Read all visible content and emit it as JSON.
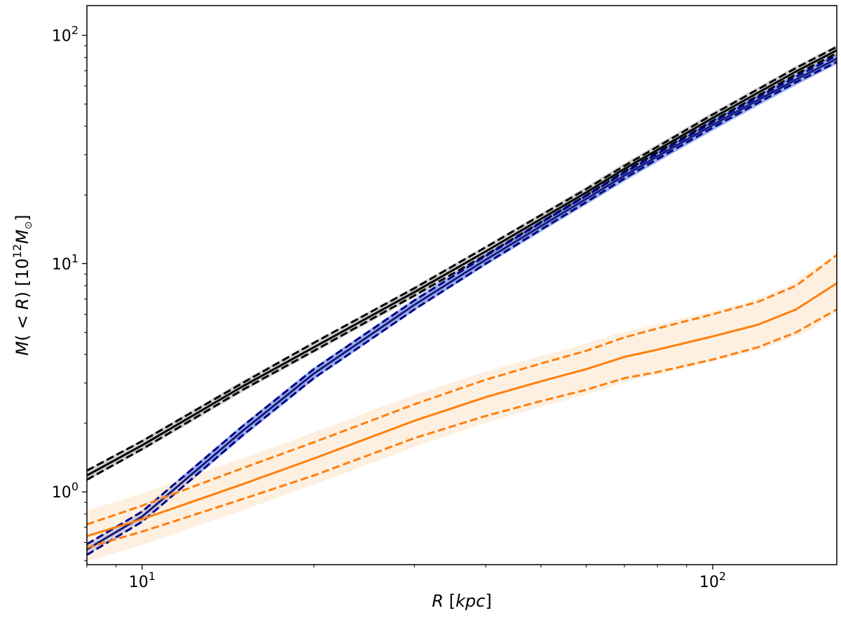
{
  "chart_data": {
    "type": "line",
    "title": "",
    "xlabel": "R [kpc]",
    "ylabel": "M(<R) [10^12 M_sun]",
    "x_scale": "log",
    "y_scale": "log",
    "xlim": [
      8,
      165
    ],
    "ylim": [
      0.48,
      135
    ],
    "grid": false,
    "legend": "none",
    "x_ticks": [
      {
        "value": 10,
        "base": "10",
        "exp": "1"
      },
      {
        "value": 100,
        "base": "10",
        "exp": "2"
      }
    ],
    "y_ticks": [
      {
        "value": 1,
        "base": "10",
        "exp": "0"
      },
      {
        "value": 10,
        "base": "10",
        "exp": "1"
      },
      {
        "value": 100,
        "base": "10",
        "exp": "2"
      }
    ],
    "x": [
      8,
      10,
      15,
      20,
      30,
      40,
      50,
      60,
      70,
      80,
      100,
      120,
      140,
      165
    ],
    "series": [
      {
        "color": "#000000",
        "style": "solid",
        "band": "#bbbbbb",
        "values": [
          1.18,
          1.6,
          2.9,
          4.3,
          7.5,
          11.3,
          15.7,
          20.5,
          26.0,
          31.5,
          43.5,
          56.0,
          69.5,
          86.0
        ]
      },
      {
        "color": "#000000",
        "style": "dashed",
        "values": [
          1.24,
          1.67,
          3.0,
          4.5,
          7.8,
          11.8,
          16.3,
          21.2,
          26.8,
          32.5,
          45.0,
          58.0,
          72.0,
          89.0
        ]
      },
      {
        "color": "#000000",
        "style": "dashed",
        "values": [
          1.13,
          1.54,
          2.8,
          4.15,
          7.25,
          10.9,
          15.2,
          19.9,
          25.3,
          30.7,
          42.2,
          54.3,
          67.5,
          83.5
        ]
      },
      {
        "color": "#1a1a7a",
        "style": "solid",
        "band": "#6e8fe0",
        "values": [
          0.56,
          0.78,
          1.85,
          3.3,
          6.6,
          10.4,
          14.6,
          19.2,
          24.3,
          29.5,
          40.5,
          52.0,
          64.0,
          79.0
        ]
      },
      {
        "color": "#00008b",
        "style": "dashed",
        "values": [
          0.59,
          0.82,
          1.94,
          3.45,
          6.9,
          10.8,
          15.1,
          19.8,
          25.0,
          30.3,
          41.6,
          53.4,
          65.8,
          81.5
        ]
      },
      {
        "color": "#00008b",
        "style": "dashed",
        "values": [
          0.53,
          0.74,
          1.77,
          3.15,
          6.3,
          10.0,
          14.1,
          18.6,
          23.6,
          28.7,
          39.4,
          50.6,
          62.3,
          76.5
        ]
      },
      {
        "color": "#ff7f0e",
        "style": "solid",
        "band": "#fbe3c8",
        "values": [
          0.64,
          0.76,
          1.08,
          1.4,
          2.05,
          2.6,
          3.05,
          3.45,
          3.9,
          4.2,
          4.8,
          5.4,
          6.3,
          8.2
        ]
      },
      {
        "color": "#ff7f0e",
        "style": "dashed",
        "values": [
          0.72,
          0.87,
          1.27,
          1.65,
          2.42,
          3.1,
          3.65,
          4.15,
          4.75,
          5.2,
          6.0,
          6.8,
          8.0,
          10.9
        ]
      },
      {
        "color": "#ff7f0e",
        "style": "dashed",
        "values": [
          0.57,
          0.67,
          0.93,
          1.18,
          1.72,
          2.15,
          2.5,
          2.8,
          3.15,
          3.35,
          3.8,
          4.3,
          5.0,
          6.3
        ]
      }
    ]
  }
}
